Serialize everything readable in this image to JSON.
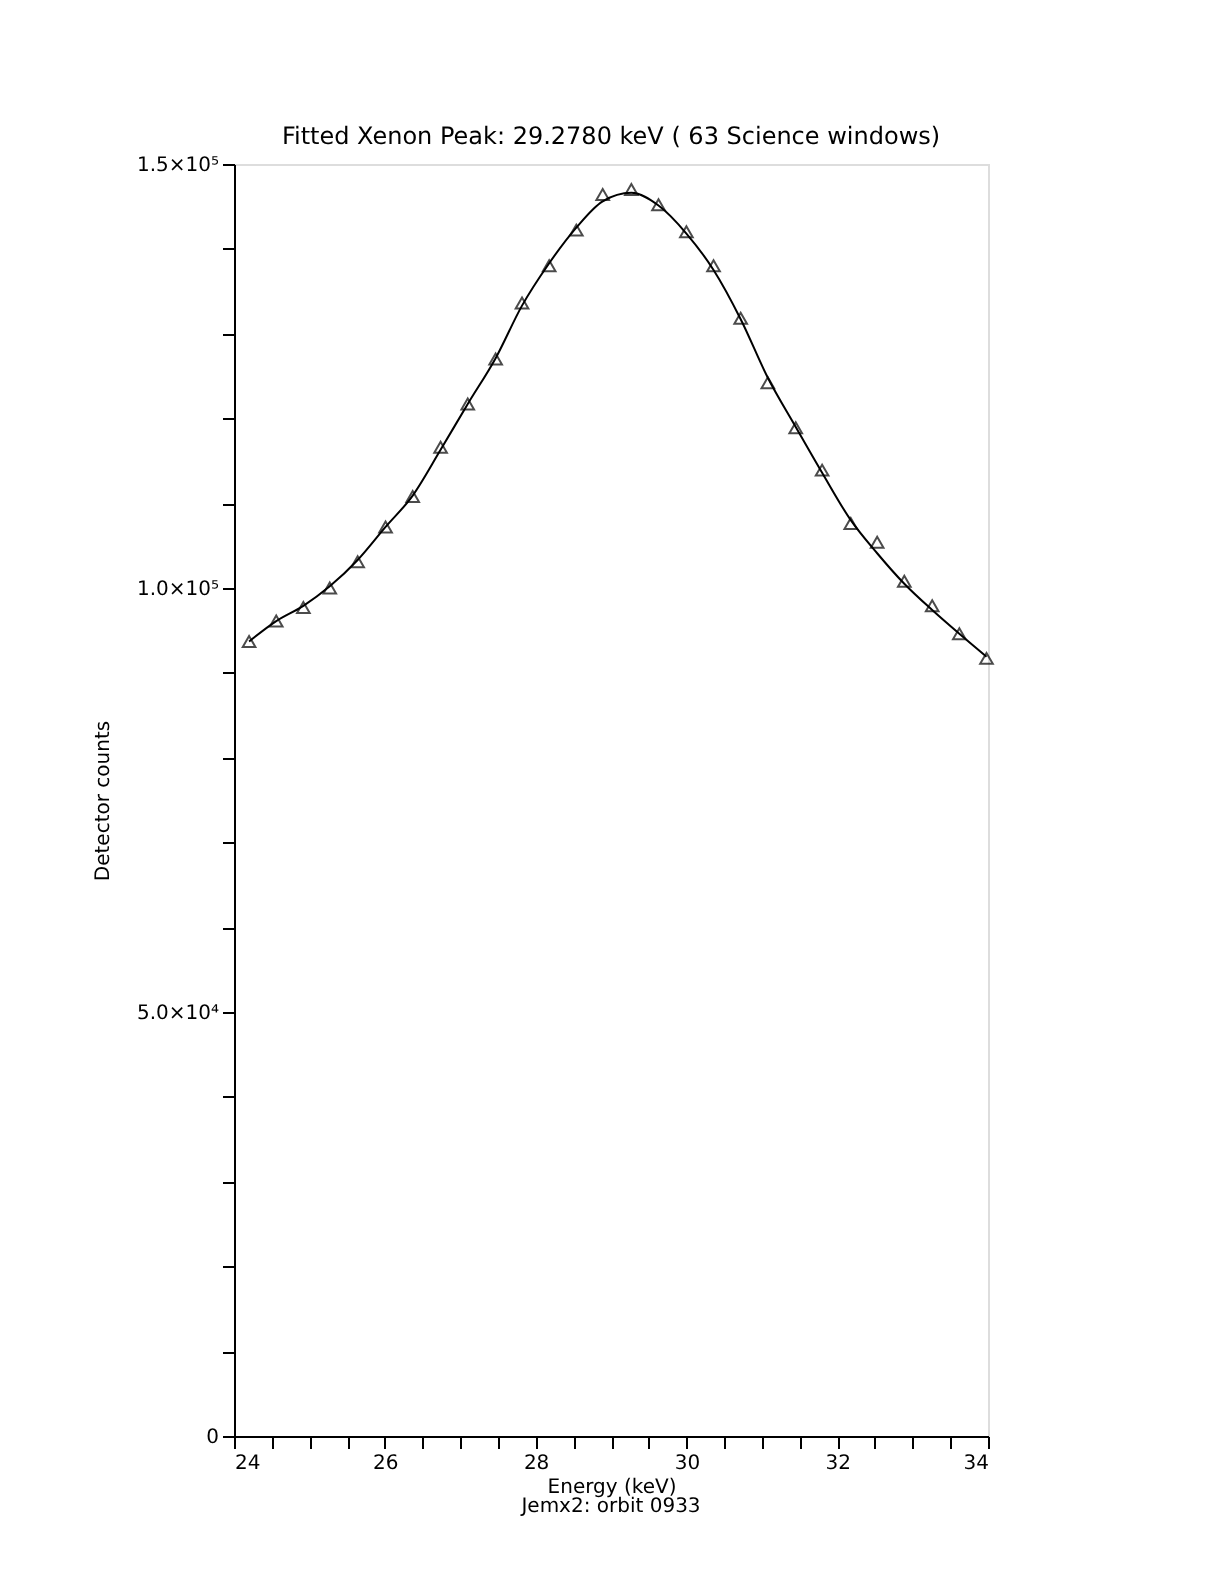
{
  "chart_data": {
    "type": "line",
    "title": "Fitted Xenon Peak: 29.2780 keV ( 63 Science windows)",
    "xlabel": "Energy (keV)",
    "ylabel": "Detector counts",
    "annotations": [
      "Jemx2: orbit 0933"
    ],
    "xlim": [
      24,
      34
    ],
    "ylim": [
      0,
      150000
    ],
    "xticks": [
      24,
      {
        "value": 24.5,
        "label": null
      },
      {
        "value": 25,
        "label": null
      },
      {
        "value": 25.5,
        "label": null
      },
      26,
      {
        "value": 26.5,
        "label": null
      },
      {
        "value": 27,
        "label": null
      },
      {
        "value": 27.5,
        "label": null
      },
      28,
      {
        "value": 28.5,
        "label": null
      },
      {
        "value": 29,
        "label": null
      },
      {
        "value": 29.5,
        "label": null
      },
      30,
      {
        "value": 30.5,
        "label": null
      },
      {
        "value": 31,
        "label": null
      },
      {
        "value": 31.5,
        "label": null
      },
      32,
      {
        "value": 32.5,
        "label": null
      },
      {
        "value": 33,
        "label": null
      },
      {
        "value": 33.5,
        "label": null
      },
      34
    ],
    "yticks": [
      0,
      {
        "value": 10000,
        "label": null
      },
      {
        "value": 20000,
        "label": null
      },
      {
        "value": 30000,
        "label": null
      },
      {
        "value": 40000,
        "label": null
      },
      {
        "value": 50000,
        "label": "5.0×10⁴"
      },
      {
        "value": 60000,
        "label": null
      },
      {
        "value": 70000,
        "label": null
      },
      {
        "value": 80000,
        "label": null
      },
      {
        "value": 90000,
        "label": null
      },
      {
        "value": 100000,
        "label": "1.0×10⁵"
      },
      {
        "value": 110000,
        "label": null
      },
      {
        "value": 120000,
        "label": null
      },
      {
        "value": 130000,
        "label": null
      },
      {
        "value": 140000,
        "label": null
      },
      {
        "value": 150000,
        "label": "1.5×10⁵"
      }
    ],
    "grid": false,
    "legend": false,
    "series": [
      {
        "marker": "none",
        "line_style": "solid",
        "color": "#000000",
        "x": [
          24.2,
          24.56,
          24.92,
          25.27,
          25.64,
          26.01,
          26.37,
          26.74,
          27.1,
          27.47,
          27.82,
          28.18,
          28.54,
          28.89,
          29.27,
          29.63,
          30.0,
          30.36,
          30.72,
          31.08,
          31.45,
          31.8,
          32.18,
          32.53,
          32.89,
          33.26,
          33.62,
          33.98
        ],
        "values": [
          93700,
          96100,
          97900,
          100200,
          103300,
          107200,
          110900,
          116300,
          121700,
          127100,
          133300,
          138300,
          142500,
          145600,
          146600,
          145100,
          141800,
          137500,
          131700,
          124800,
          119000,
          113600,
          108000,
          104100,
          100500,
          97400,
          94600,
          91900
        ]
      },
      {
        "type": "scatter",
        "marker": "triangle",
        "color": "#000000",
        "x": [
          24.2,
          24.56,
          24.92,
          25.27,
          25.64,
          26.01,
          26.37,
          26.74,
          27.1,
          27.47,
          27.82,
          28.18,
          28.54,
          28.89,
          29.27,
          29.63,
          30.0,
          30.36,
          30.72,
          31.08,
          31.45,
          31.8,
          32.18,
          32.53,
          32.89,
          33.26,
          33.62,
          33.98
        ],
        "values": [
          93700,
          96100,
          97700,
          100000,
          103100,
          107200,
          110800,
          116600,
          121700,
          127000,
          133600,
          138000,
          142200,
          146400,
          147000,
          145200,
          142000,
          138000,
          131800,
          124200,
          118900,
          113900,
          107600,
          105400,
          100800,
          97900,
          94600,
          91700
        ]
      }
    ]
  }
}
